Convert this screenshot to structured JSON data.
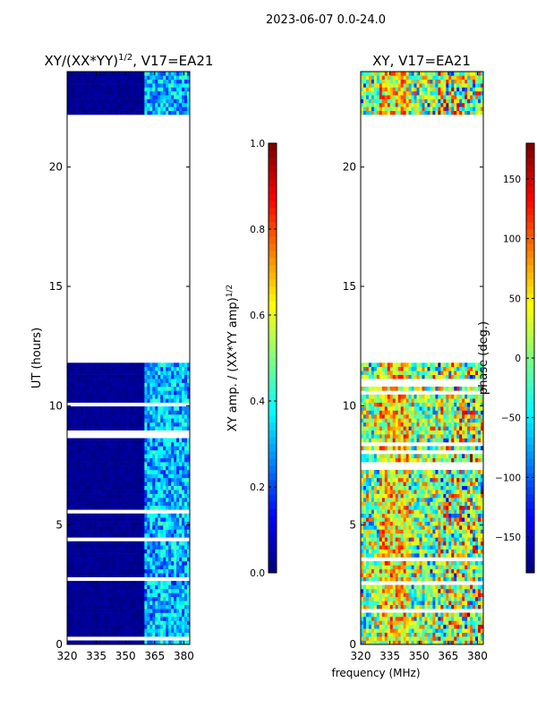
{
  "suptitle": "2023-06-07 0.0-24.0",
  "xlabel_shared": "frequency (MHz)",
  "colors": {
    "jet": [
      "#00007f",
      "#0000ff",
      "#007fff",
      "#00ffff",
      "#7fff7f",
      "#ffff00",
      "#ff7f00",
      "#ff0000",
      "#7f0000"
    ],
    "background": "#ffffff"
  },
  "chart_data": [
    {
      "type": "heatmap",
      "title": "XY/(XX*YY)^1/2, V17=EA21",
      "title_main": "XY/(XX*YY)",
      "title_exp": "1/2",
      "title_rest": ", V17=EA21",
      "xlabel": "",
      "ylabel": "UT (hours)",
      "xlim": [
        320,
        383
      ],
      "ylim": [
        0,
        24
      ],
      "xticks": [
        320,
        335,
        350,
        365,
        380
      ],
      "yticks": [
        0,
        5,
        10,
        15,
        20
      ],
      "data_time_ranges_hours": [
        [
          0.0,
          11.8
        ],
        [
          22.2,
          24.0
        ]
      ],
      "bright_band_mhz": [
        360,
        383
      ],
      "colorbar": {
        "label": "XY amp. / (XX*YY amp)^1/2",
        "label_main": "XY amp. / (XX*YY amp)",
        "label_exp": "1/2",
        "min": 0.0,
        "max": 1.0,
        "ticks": [
          "0.0",
          "0.2",
          "0.4",
          "0.6",
          "0.8",
          "1.0"
        ],
        "tick_values": [
          0.0,
          0.2,
          0.4,
          0.6,
          0.8,
          1.0
        ]
      }
    },
    {
      "type": "heatmap",
      "title": "XY, V17=EA21",
      "xlabel": "frequency (MHz)",
      "ylabel": "",
      "xlim": [
        320,
        383
      ],
      "ylim": [
        0,
        24
      ],
      "xticks": [
        320,
        335,
        350,
        365,
        380
      ],
      "yticks": [
        0,
        5,
        10,
        15,
        20
      ],
      "data_time_ranges_hours": [
        [
          0.0,
          11.8
        ],
        [
          22.2,
          24.0
        ]
      ],
      "colorbar": {
        "label": "phase (deg.)",
        "min": -180,
        "max": 180,
        "ticks": [
          "−150",
          "−100",
          "−50",
          "0",
          "50",
          "100",
          "150"
        ],
        "tick_values": [
          -150,
          -100,
          -50,
          0,
          50,
          100,
          150
        ]
      }
    }
  ]
}
